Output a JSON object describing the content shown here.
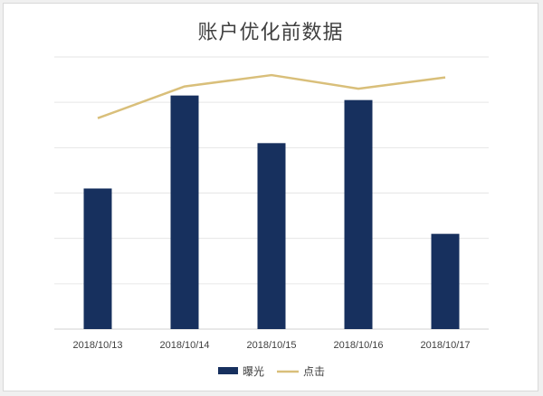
{
  "chart_data": {
    "type": "bar",
    "title": "账户优化前数据",
    "xlabel": "",
    "ylabel": "",
    "categories": [
      "2018/10/13",
      "2018/10/14",
      "2018/10/15",
      "2018/10/16",
      "2018/10/17"
    ],
    "series": [
      {
        "name": "曝光",
        "type": "bar",
        "values": [
          3.1,
          5.15,
          4.1,
          5.05,
          2.1
        ],
        "color": "#17305e"
      },
      {
        "name": "点击",
        "type": "line",
        "values": [
          4.65,
          5.35,
          5.6,
          5.3,
          5.55
        ],
        "color": "#d9bf7a"
      }
    ],
    "ylim": [
      0,
      6
    ],
    "grid": true,
    "legend": "bottom-center"
  }
}
